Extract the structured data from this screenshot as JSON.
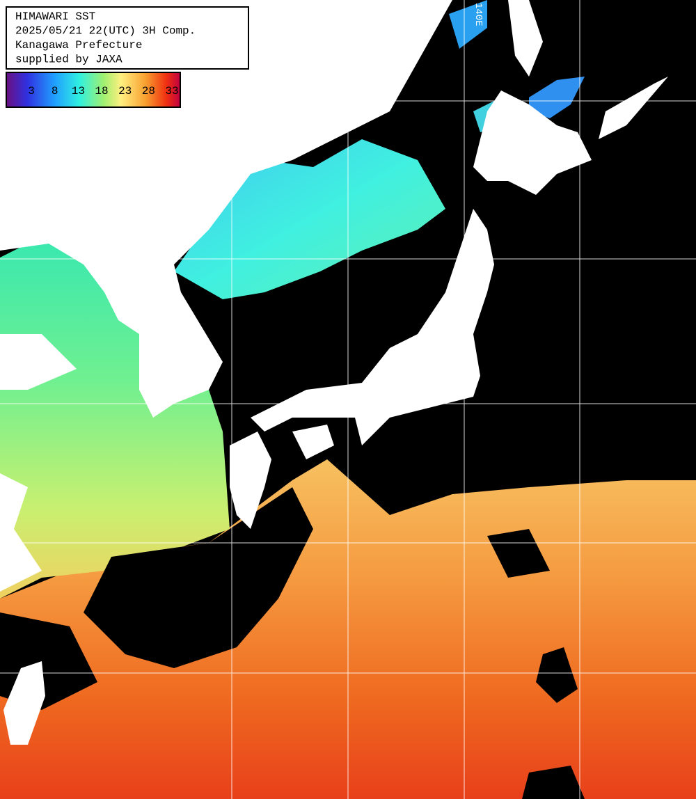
{
  "header": {
    "lines": [
      "HIMAWARI SST",
      "2025/05/21 22(UTC) 3H Comp.",
      "Kanagawa Prefecture",
      "supplied by JAXA"
    ]
  },
  "legend": {
    "ticks": [
      3,
      8,
      13,
      18,
      23,
      28,
      33
    ]
  },
  "grid": {
    "labels": [
      "140E"
    ]
  }
}
